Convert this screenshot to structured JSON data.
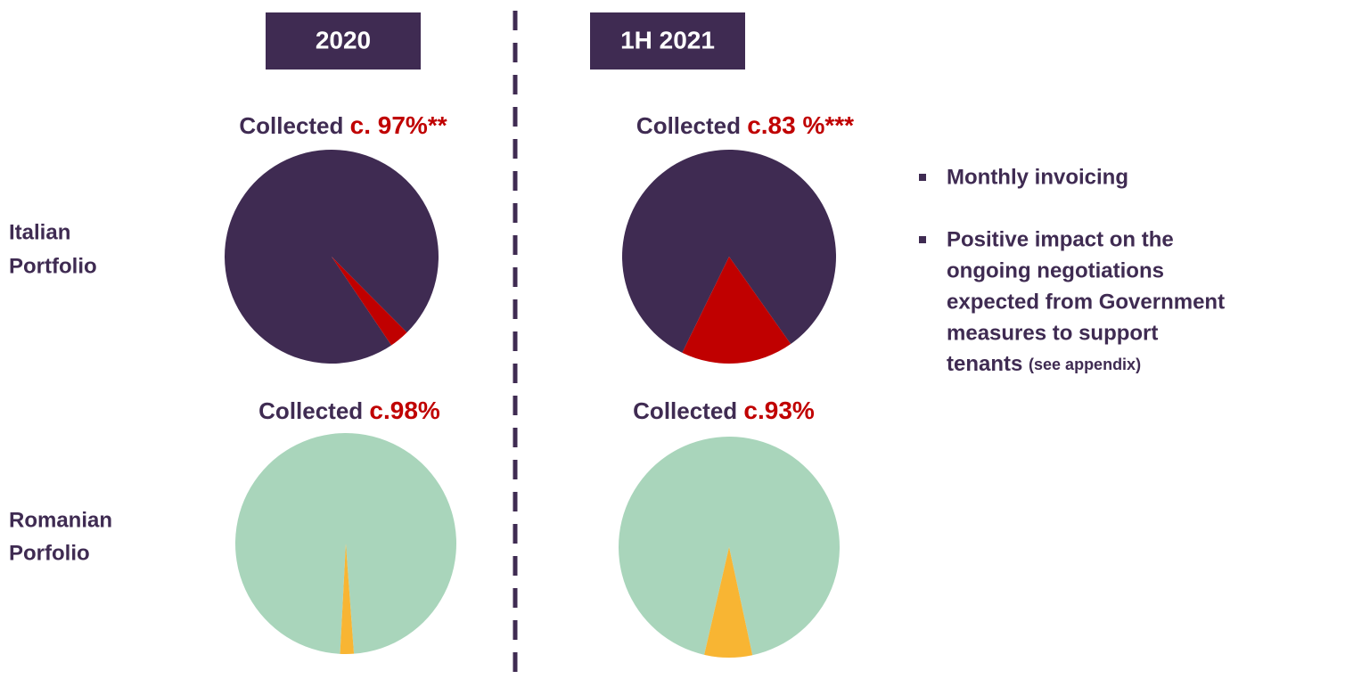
{
  "columns": [
    {
      "label": "2020"
    },
    {
      "label": "1H 2021"
    }
  ],
  "rows": [
    {
      "label": [
        "Italian",
        "Portfolio"
      ]
    },
    {
      "label": [
        "Romanian",
        "Porfolio"
      ]
    }
  ],
  "bullets": [
    {
      "lines": [
        "Monthly invoicing"
      ]
    },
    {
      "lines": [
        "Positive impact on the",
        "ongoing negotiations",
        "expected from Government",
        "measures to support",
        "tenants"
      ],
      "note": "(see appendix)"
    }
  ],
  "chart_data": [
    {
      "type": "pie",
      "title": "Collected",
      "title_highlight": "c. 97%**",
      "values": [
        97,
        3
      ],
      "colors": [
        "#3f2b52",
        "#c00000"
      ],
      "start_angle": 146
    },
    {
      "type": "pie",
      "title": "Collected",
      "title_highlight": "c.83 %***",
      "values": [
        83,
        17
      ],
      "colors": [
        "#3f2b52",
        "#c00000"
      ],
      "start_angle": 206
    },
    {
      "type": "pie",
      "title": "Collected",
      "title_highlight": "c.98%",
      "values": [
        98,
        2
      ],
      "colors": [
        "#a9d5bb",
        "#f8b533"
      ],
      "start_angle": 183
    },
    {
      "type": "pie",
      "title": "Collected",
      "title_highlight": "c.93%",
      "values": [
        93,
        7
      ],
      "colors": [
        "#a9d5bb",
        "#f8b533"
      ],
      "start_angle": 193
    }
  ]
}
